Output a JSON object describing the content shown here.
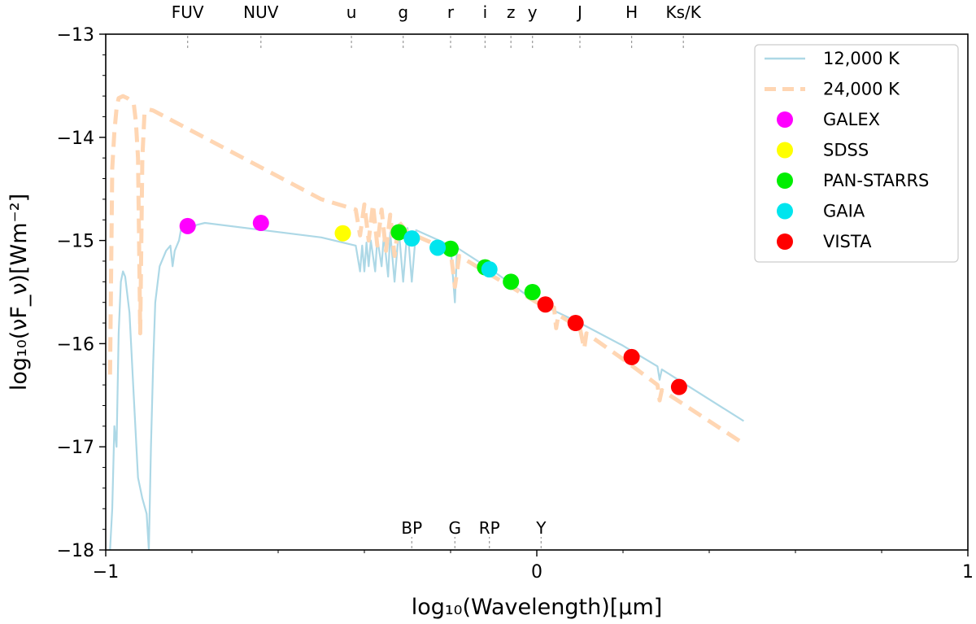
{
  "chart_data": {
    "type": "line",
    "xlabel": "log₁₀(Wavelength)[μm]",
    "ylabel": "log₁₀(νF_ν)[Wm⁻²]",
    "xlim": [
      -1,
      1
    ],
    "ylim": [
      -18,
      -13
    ],
    "x_ticks": [
      -1,
      0,
      1
    ],
    "x_tick_labels": [
      "−1",
      "0",
      "1"
    ],
    "y_ticks": [
      -13,
      -14,
      -15,
      -16,
      -17,
      -18
    ],
    "y_tick_labels": [
      "−13",
      "−14",
      "−15",
      "−16",
      "−17",
      "−18"
    ],
    "grid": false,
    "legend_position": "top-right",
    "top_bands": [
      {
        "label": "FUV",
        "x": -0.81
      },
      {
        "label": "NUV",
        "x": -0.64
      },
      {
        "label": "u",
        "x": -0.43
      },
      {
        "label": "g",
        "x": -0.31
      },
      {
        "label": "r",
        "x": -0.2
      },
      {
        "label": "i",
        "x": -0.12
      },
      {
        "label": "z",
        "x": -0.06
      },
      {
        "label": "y",
        "x": -0.01
      },
      {
        "label": "J",
        "x": 0.1
      },
      {
        "label": "H",
        "x": 0.22
      },
      {
        "label": "Ks/K",
        "x": 0.34
      }
    ],
    "bottom_bands": [
      {
        "label": "BP",
        "x": -0.29
      },
      {
        "label": "G",
        "x": -0.19
      },
      {
        "label": "RP",
        "x": -0.11
      },
      {
        "label": "Y",
        "x": 0.01
      }
    ],
    "series": [
      {
        "name": "12,000 K",
        "kind": "line",
        "color": "#add8e6",
        "dash": "solid",
        "points": [
          [
            -0.99,
            -18.0
          ],
          [
            -0.985,
            -17.6
          ],
          [
            -0.98,
            -16.8
          ],
          [
            -0.975,
            -17.0
          ],
          [
            -0.97,
            -15.9
          ],
          [
            -0.965,
            -15.4
          ],
          [
            -0.96,
            -15.3
          ],
          [
            -0.955,
            -15.35
          ],
          [
            -0.945,
            -15.7
          ],
          [
            -0.935,
            -16.5
          ],
          [
            -0.925,
            -17.3
          ],
          [
            -0.915,
            -17.5
          ],
          [
            -0.905,
            -17.65
          ],
          [
            -0.9,
            -18.0
          ],
          [
            -0.895,
            -17.0
          ],
          [
            -0.89,
            -16.2
          ],
          [
            -0.885,
            -15.6
          ],
          [
            -0.875,
            -15.25
          ],
          [
            -0.86,
            -15.1
          ],
          [
            -0.85,
            -15.05
          ],
          [
            -0.845,
            -15.25
          ],
          [
            -0.84,
            -15.1
          ],
          [
            -0.83,
            -15.0
          ],
          [
            -0.825,
            -14.88
          ],
          [
            -0.82,
            -14.85
          ],
          [
            -0.81,
            -14.87
          ],
          [
            -0.8,
            -14.9
          ],
          [
            -0.79,
            -14.85
          ],
          [
            -0.77,
            -14.83
          ],
          [
            -0.5,
            -14.97
          ],
          [
            -0.42,
            -15.05
          ],
          [
            -0.41,
            -15.3
          ],
          [
            -0.405,
            -15.05
          ],
          [
            -0.4,
            -15.3
          ],
          [
            -0.395,
            -15.02
          ],
          [
            -0.39,
            -15.25
          ],
          [
            -0.385,
            -15.0
          ],
          [
            -0.375,
            -15.3
          ],
          [
            -0.37,
            -14.98
          ],
          [
            -0.36,
            -15.25
          ],
          [
            -0.355,
            -14.95
          ],
          [
            -0.345,
            -15.35
          ],
          [
            -0.34,
            -14.92
          ],
          [
            -0.33,
            -15.4
          ],
          [
            -0.32,
            -14.9
          ],
          [
            -0.31,
            -15.4
          ],
          [
            -0.3,
            -14.88
          ],
          [
            -0.29,
            -15.4
          ],
          [
            -0.28,
            -14.9
          ],
          [
            -0.2,
            -15.05
          ],
          [
            -0.19,
            -15.6
          ],
          [
            -0.185,
            -15.07
          ],
          [
            -0.1,
            -15.3
          ],
          [
            0.0,
            -15.6
          ],
          [
            0.1,
            -15.8
          ],
          [
            0.2,
            -16.02
          ],
          [
            0.28,
            -16.22
          ],
          [
            0.285,
            -16.35
          ],
          [
            0.29,
            -16.25
          ],
          [
            0.48,
            -16.75
          ]
        ]
      },
      {
        "name": "24,000 K",
        "kind": "line",
        "color": "#ffd6b3",
        "dash": "dashed",
        "points": [
          [
            -0.99,
            -16.3
          ],
          [
            -0.985,
            -14.3
          ],
          [
            -0.98,
            -13.95
          ],
          [
            -0.975,
            -13.72
          ],
          [
            -0.97,
            -13.62
          ],
          [
            -0.96,
            -13.6
          ],
          [
            -0.95,
            -13.62
          ],
          [
            -0.935,
            -13.67
          ],
          [
            -0.93,
            -13.85
          ],
          [
            -0.925,
            -14.2
          ],
          [
            -0.92,
            -15.9
          ],
          [
            -0.915,
            -14.2
          ],
          [
            -0.91,
            -13.76
          ],
          [
            -0.9,
            -13.73
          ],
          [
            -0.89,
            -13.74
          ],
          [
            -0.5,
            -14.6
          ],
          [
            -0.42,
            -14.7
          ],
          [
            -0.41,
            -14.95
          ],
          [
            -0.4,
            -14.65
          ],
          [
            -0.39,
            -15.0
          ],
          [
            -0.38,
            -14.65
          ],
          [
            -0.37,
            -15.05
          ],
          [
            -0.36,
            -14.7
          ],
          [
            -0.35,
            -15.1
          ],
          [
            -0.34,
            -14.75
          ],
          [
            -0.33,
            -15.15
          ],
          [
            -0.32,
            -14.82
          ],
          [
            -0.3,
            -14.92
          ],
          [
            -0.2,
            -15.1
          ],
          [
            -0.19,
            -15.45
          ],
          [
            -0.18,
            -15.15
          ],
          [
            -0.1,
            -15.35
          ],
          [
            0.0,
            -15.6
          ],
          [
            0.04,
            -15.65
          ],
          [
            0.045,
            -15.85
          ],
          [
            0.05,
            -15.72
          ],
          [
            0.1,
            -15.85
          ],
          [
            0.11,
            -16.05
          ],
          [
            0.115,
            -15.9
          ],
          [
            0.2,
            -16.15
          ],
          [
            0.28,
            -16.4
          ],
          [
            0.285,
            -16.55
          ],
          [
            0.29,
            -16.45
          ],
          [
            0.48,
            -16.97
          ]
        ]
      }
    ],
    "points": [
      {
        "name": "GALEX",
        "color": "#ff00ff",
        "values": [
          [
            -0.81,
            -14.86
          ],
          [
            -0.64,
            -14.83
          ]
        ]
      },
      {
        "name": "SDSS",
        "color": "#ffff00",
        "values": [
          [
            -0.45,
            -14.93
          ]
        ]
      },
      {
        "name": "PAN-STARRS",
        "color": "#00ee00",
        "values": [
          [
            -0.32,
            -14.92
          ],
          [
            -0.2,
            -15.08
          ],
          [
            -0.12,
            -15.26
          ],
          [
            -0.06,
            -15.4
          ],
          [
            -0.01,
            -15.5
          ]
        ]
      },
      {
        "name": "GAIA",
        "color": "#00e5ee",
        "values": [
          [
            -0.29,
            -14.98
          ],
          [
            -0.23,
            -15.07
          ],
          [
            -0.11,
            -15.28
          ]
        ]
      },
      {
        "name": "VISTA",
        "color": "#ff0000",
        "values": [
          [
            0.02,
            -15.62
          ],
          [
            0.09,
            -15.8
          ],
          [
            0.22,
            -16.13
          ],
          [
            0.33,
            -16.42
          ]
        ]
      }
    ]
  }
}
